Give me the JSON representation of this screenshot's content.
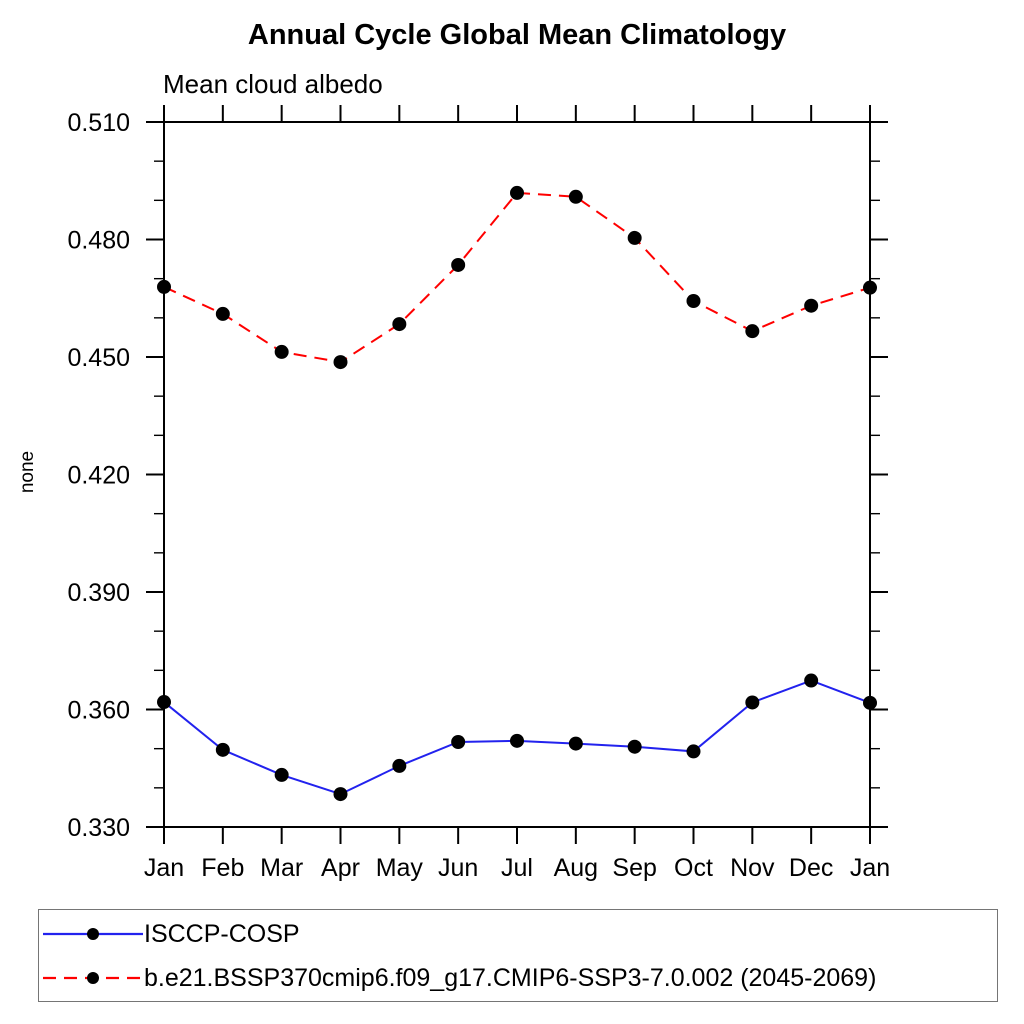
{
  "chart_data": {
    "type": "line",
    "title": "Annual Cycle Global Mean Climatology",
    "subtitle": "Mean cloud albedo",
    "ylabel": "none",
    "xlabel": "",
    "x_tick_labels": [
      "Jan",
      "Feb",
      "Mar",
      "Apr",
      "May",
      "Jun",
      "Jul",
      "Aug",
      "Sep",
      "Oct",
      "Nov",
      "Dec",
      "Jan"
    ],
    "ylim": [
      0.33,
      0.51
    ],
    "y_major_step": 0.03,
    "y_minor_step": 0.01,
    "y_tick_format_decimals": 3,
    "grid": false,
    "legend_position": "bottom-left",
    "series": [
      {
        "name": "ISCCP-COSP",
        "line_style": "solid",
        "line_color": "#2222ee",
        "marker": "filled-circle",
        "marker_color": "#000000",
        "values": [
          0.3619,
          0.3497,
          0.3433,
          0.3384,
          0.3456,
          0.3517,
          0.352,
          0.3513,
          0.3505,
          0.3493,
          0.3618,
          0.3674,
          0.3617
        ]
      },
      {
        "name": "b.e21.BSSP370cmip6.f09_g17.CMIP6-SSP3-7.0.002 (2045-2069)",
        "line_style": "dashed",
        "line_color": "#ff0000",
        "marker": "filled-circle",
        "marker_color": "#000000",
        "values": [
          0.4679,
          0.461,
          0.4513,
          0.4487,
          0.4584,
          0.4735,
          0.4919,
          0.4909,
          0.4804,
          0.4643,
          0.4566,
          0.4631,
          0.4677
        ]
      }
    ],
    "axis_color": "#000000"
  }
}
